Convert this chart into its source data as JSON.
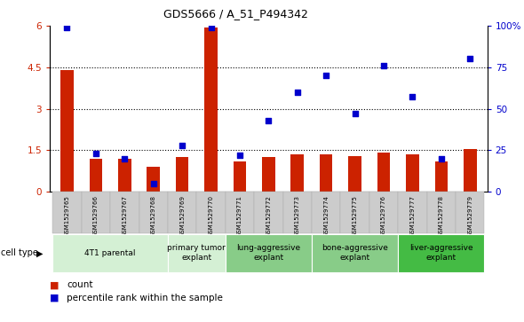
{
  "title": "GDS5666 / A_51_P494342",
  "samples": [
    "GSM1529765",
    "GSM1529766",
    "GSM1529767",
    "GSM1529768",
    "GSM1529769",
    "GSM1529770",
    "GSM1529771",
    "GSM1529772",
    "GSM1529773",
    "GSM1529774",
    "GSM1529775",
    "GSM1529776",
    "GSM1529777",
    "GSM1529778",
    "GSM1529779"
  ],
  "bar_values": [
    4.4,
    1.2,
    1.2,
    0.9,
    1.25,
    5.95,
    1.1,
    1.25,
    1.35,
    1.35,
    1.28,
    1.42,
    1.35,
    1.1,
    1.55
  ],
  "percentile_values": [
    99,
    23,
    20,
    5,
    28,
    99,
    22,
    43,
    60,
    70,
    47,
    76,
    57,
    20,
    80
  ],
  "ylim_left": [
    0,
    6
  ],
  "ylim_right": [
    0,
    100
  ],
  "yticks_left": [
    0,
    1.5,
    3.0,
    4.5,
    6.0
  ],
  "yticks_right": [
    0,
    25,
    50,
    75,
    100
  ],
  "ytick_labels_left": [
    "0",
    "1.5",
    "3",
    "4.5",
    "6"
  ],
  "ytick_labels_right": [
    "0",
    "25",
    "50",
    "75",
    "100%"
  ],
  "bar_color": "#cc2200",
  "dot_color": "#0000cc",
  "cell_type_groups": [
    {
      "label": "4T1 parental",
      "indices": [
        0,
        1,
        2,
        3
      ],
      "color": "#d4f0d4"
    },
    {
      "label": "primary tumor\nexplant",
      "indices": [
        4,
        5
      ],
      "color": "#d4f0d4"
    },
    {
      "label": "lung-aggressive\nexplant",
      "indices": [
        6,
        7,
        8
      ],
      "color": "#66cc66"
    },
    {
      "label": "bone-aggressive\nexplant",
      "indices": [
        9,
        10,
        11
      ],
      "color": "#66cc66"
    },
    {
      "label": "liver-aggressive\nexplant",
      "indices": [
        12,
        13,
        14
      ],
      "color": "#33aa33"
    }
  ]
}
